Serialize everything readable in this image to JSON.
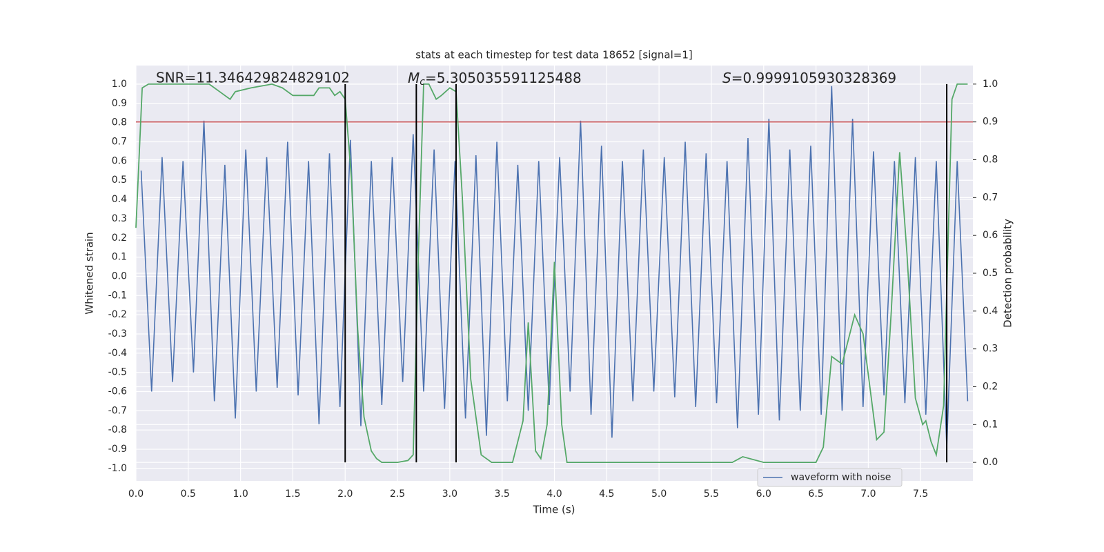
{
  "chart_data": {
    "type": "line",
    "title": "stats at each timestep for test data 18652 [signal=1]",
    "xlabel": "Time (s)",
    "ylabel": "Whitened strain",
    "y2label": "Detection probability",
    "xlim": [
      0,
      8
    ],
    "ylim": [
      -1.065,
      1.097
    ],
    "y2lim": [
      -0.049,
      1.049
    ],
    "xticks": [
      {
        "value": 0,
        "label": "0.0"
      },
      0.5,
      {
        "value": 1,
        "label": "1.0"
      },
      1.5,
      {
        "value": 2,
        "label": "2.0"
      },
      2.5,
      {
        "value": 3,
        "label": "3.0"
      },
      3.5,
      {
        "value": 4,
        "label": "4.0"
      },
      4.5,
      {
        "value": 5,
        "label": "5.0"
      },
      5.5,
      {
        "value": 6,
        "label": "6.0"
      },
      6.5,
      {
        "value": 7,
        "label": "7.0"
      },
      7.5
    ],
    "yticks": [
      {
        "value": -1,
        "label": "-1.0"
      },
      -0.9,
      -0.8,
      -0.7,
      -0.6,
      -0.5,
      -0.4,
      -0.3,
      -0.2,
      -0.1,
      {
        "value": 0,
        "label": "0.0"
      },
      0.1,
      0.2,
      0.3,
      0.4,
      0.5,
      0.6,
      0.7,
      0.8,
      0.9,
      {
        "value": 1,
        "label": "1.0"
      }
    ],
    "y2ticks": [
      {
        "value": 0,
        "label": "0.0"
      },
      0.1,
      0.2,
      0.3,
      0.4,
      0.5,
      0.6,
      0.7,
      0.8,
      0.9,
      {
        "value": 1,
        "label": "1.0"
      }
    ],
    "grid": true,
    "legend": "lower right",
    "series": [
      {
        "name": "waveform with noise",
        "color": "#4c72b0",
        "axis": "y",
        "x": [
          0.05,
          0.15,
          0.25,
          0.35,
          0.45,
          0.55,
          0.65,
          0.75,
          0.85,
          0.95,
          1.05,
          1.15,
          1.25,
          1.35,
          1.45,
          1.55,
          1.65,
          1.75,
          1.85,
          1.95,
          2.05,
          2.15,
          2.25,
          2.35,
          2.45,
          2.55,
          2.65,
          2.75,
          2.85,
          2.95,
          3.05,
          3.15,
          3.25,
          3.35,
          3.45,
          3.55,
          3.65,
          3.75,
          3.85,
          3.95,
          4.05,
          4.15,
          4.25,
          4.35,
          4.45,
          4.55,
          4.65,
          4.75,
          4.85,
          4.95,
          5.05,
          5.15,
          5.25,
          5.35,
          5.45,
          5.55,
          5.65,
          5.75,
          5.85,
          5.95,
          6.05,
          6.15,
          6.25,
          6.35,
          6.45,
          6.55,
          6.65,
          6.75,
          6.85,
          6.95,
          7.05,
          7.15,
          7.25,
          7.35,
          7.45,
          7.55,
          7.65,
          7.75,
          7.85,
          7.95
        ],
        "values": [
          0.55,
          -0.6,
          0.62,
          -0.55,
          0.6,
          -0.5,
          0.81,
          -0.65,
          0.58,
          -0.74,
          0.66,
          -0.6,
          0.62,
          -0.58,
          0.7,
          -0.62,
          0.6,
          -0.77,
          0.64,
          -0.68,
          0.71,
          -0.78,
          0.6,
          -0.67,
          0.62,
          -0.55,
          0.74,
          -0.6,
          0.66,
          -0.69,
          0.6,
          -0.74,
          0.63,
          -0.83,
          0.7,
          -0.65,
          0.58,
          -0.7,
          0.6,
          -0.67,
          0.62,
          -0.6,
          0.81,
          -0.72,
          0.68,
          -0.84,
          0.6,
          -0.65,
          0.66,
          -0.6,
          0.62,
          -0.63,
          0.7,
          -0.68,
          0.64,
          -0.66,
          0.6,
          -0.79,
          0.72,
          -0.72,
          0.82,
          -0.75,
          0.66,
          -0.7,
          0.68,
          -0.72,
          0.99,
          -0.7,
          0.82,
          -0.68,
          0.65,
          -0.62,
          0.6,
          -0.66,
          0.62,
          -0.72,
          0.6,
          -0.89,
          0.6,
          -0.65
        ]
      },
      {
        "color": "#55a868",
        "axis": "y2",
        "x": [
          0,
          0.06,
          0.12,
          0.5,
          0.7,
          0.8,
          0.9,
          0.95,
          1.1,
          1.3,
          1.4,
          1.5,
          1.6,
          1.7,
          1.75,
          1.85,
          1.9,
          1.95,
          2.0,
          2.06,
          2.12,
          2.18,
          2.25,
          2.3,
          2.35,
          2.5,
          2.6,
          2.65,
          2.7,
          2.75,
          2.8,
          2.87,
          2.92,
          3.0,
          3.06,
          3.12,
          3.2,
          3.3,
          3.4,
          3.6,
          3.7,
          3.75,
          3.82,
          3.87,
          3.93,
          4.0,
          4.07,
          4.12,
          4.2,
          4.3,
          5.0,
          5.7,
          5.8,
          6.0,
          6.5,
          6.57,
          6.65,
          6.75,
          6.87,
          6.95,
          7.08,
          7.15,
          7.22,
          7.3,
          7.37,
          7.45,
          7.52,
          7.55,
          7.6,
          7.65,
          7.72,
          7.8,
          7.85,
          7.95
        ],
        "values": [
          0.62,
          0.99,
          1.0,
          1.0,
          1.0,
          0.98,
          0.96,
          0.98,
          0.99,
          1.0,
          0.99,
          0.97,
          0.97,
          0.97,
          0.99,
          0.99,
          0.97,
          0.98,
          0.96,
          0.75,
          0.35,
          0.12,
          0.03,
          0.01,
          0.0,
          0.0,
          0.005,
          0.02,
          0.55,
          1.0,
          1.0,
          0.96,
          0.97,
          0.99,
          0.98,
          0.7,
          0.22,
          0.02,
          0.0,
          0.0,
          0.11,
          0.37,
          0.03,
          0.01,
          0.1,
          0.53,
          0.1,
          0.0,
          0.0,
          0.0,
          0.0,
          0.0,
          0.015,
          0.0,
          0.0,
          0.04,
          0.28,
          0.26,
          0.39,
          0.34,
          0.06,
          0.08,
          0.4,
          0.82,
          0.55,
          0.17,
          0.1,
          0.11,
          0.055,
          0.02,
          0.15,
          0.96,
          1.0,
          1.0
        ]
      }
    ],
    "threshold": {
      "value": 0.9,
      "axis": "y2",
      "color": "#c44e52"
    },
    "vlines": {
      "x": [
        2.0,
        2.68,
        3.06,
        7.75
      ],
      "ymin": 0,
      "ymax": 1,
      "axis": "y2",
      "color": "#000000"
    },
    "annotations": {
      "snr": "SNR=11.346429824829102",
      "mc": {
        "symbol": "M",
        "subscript": "c",
        "text": "=5.305035591125488"
      },
      "s": {
        "symbol": "S",
        "text": "=0.9999105930328369"
      }
    }
  }
}
